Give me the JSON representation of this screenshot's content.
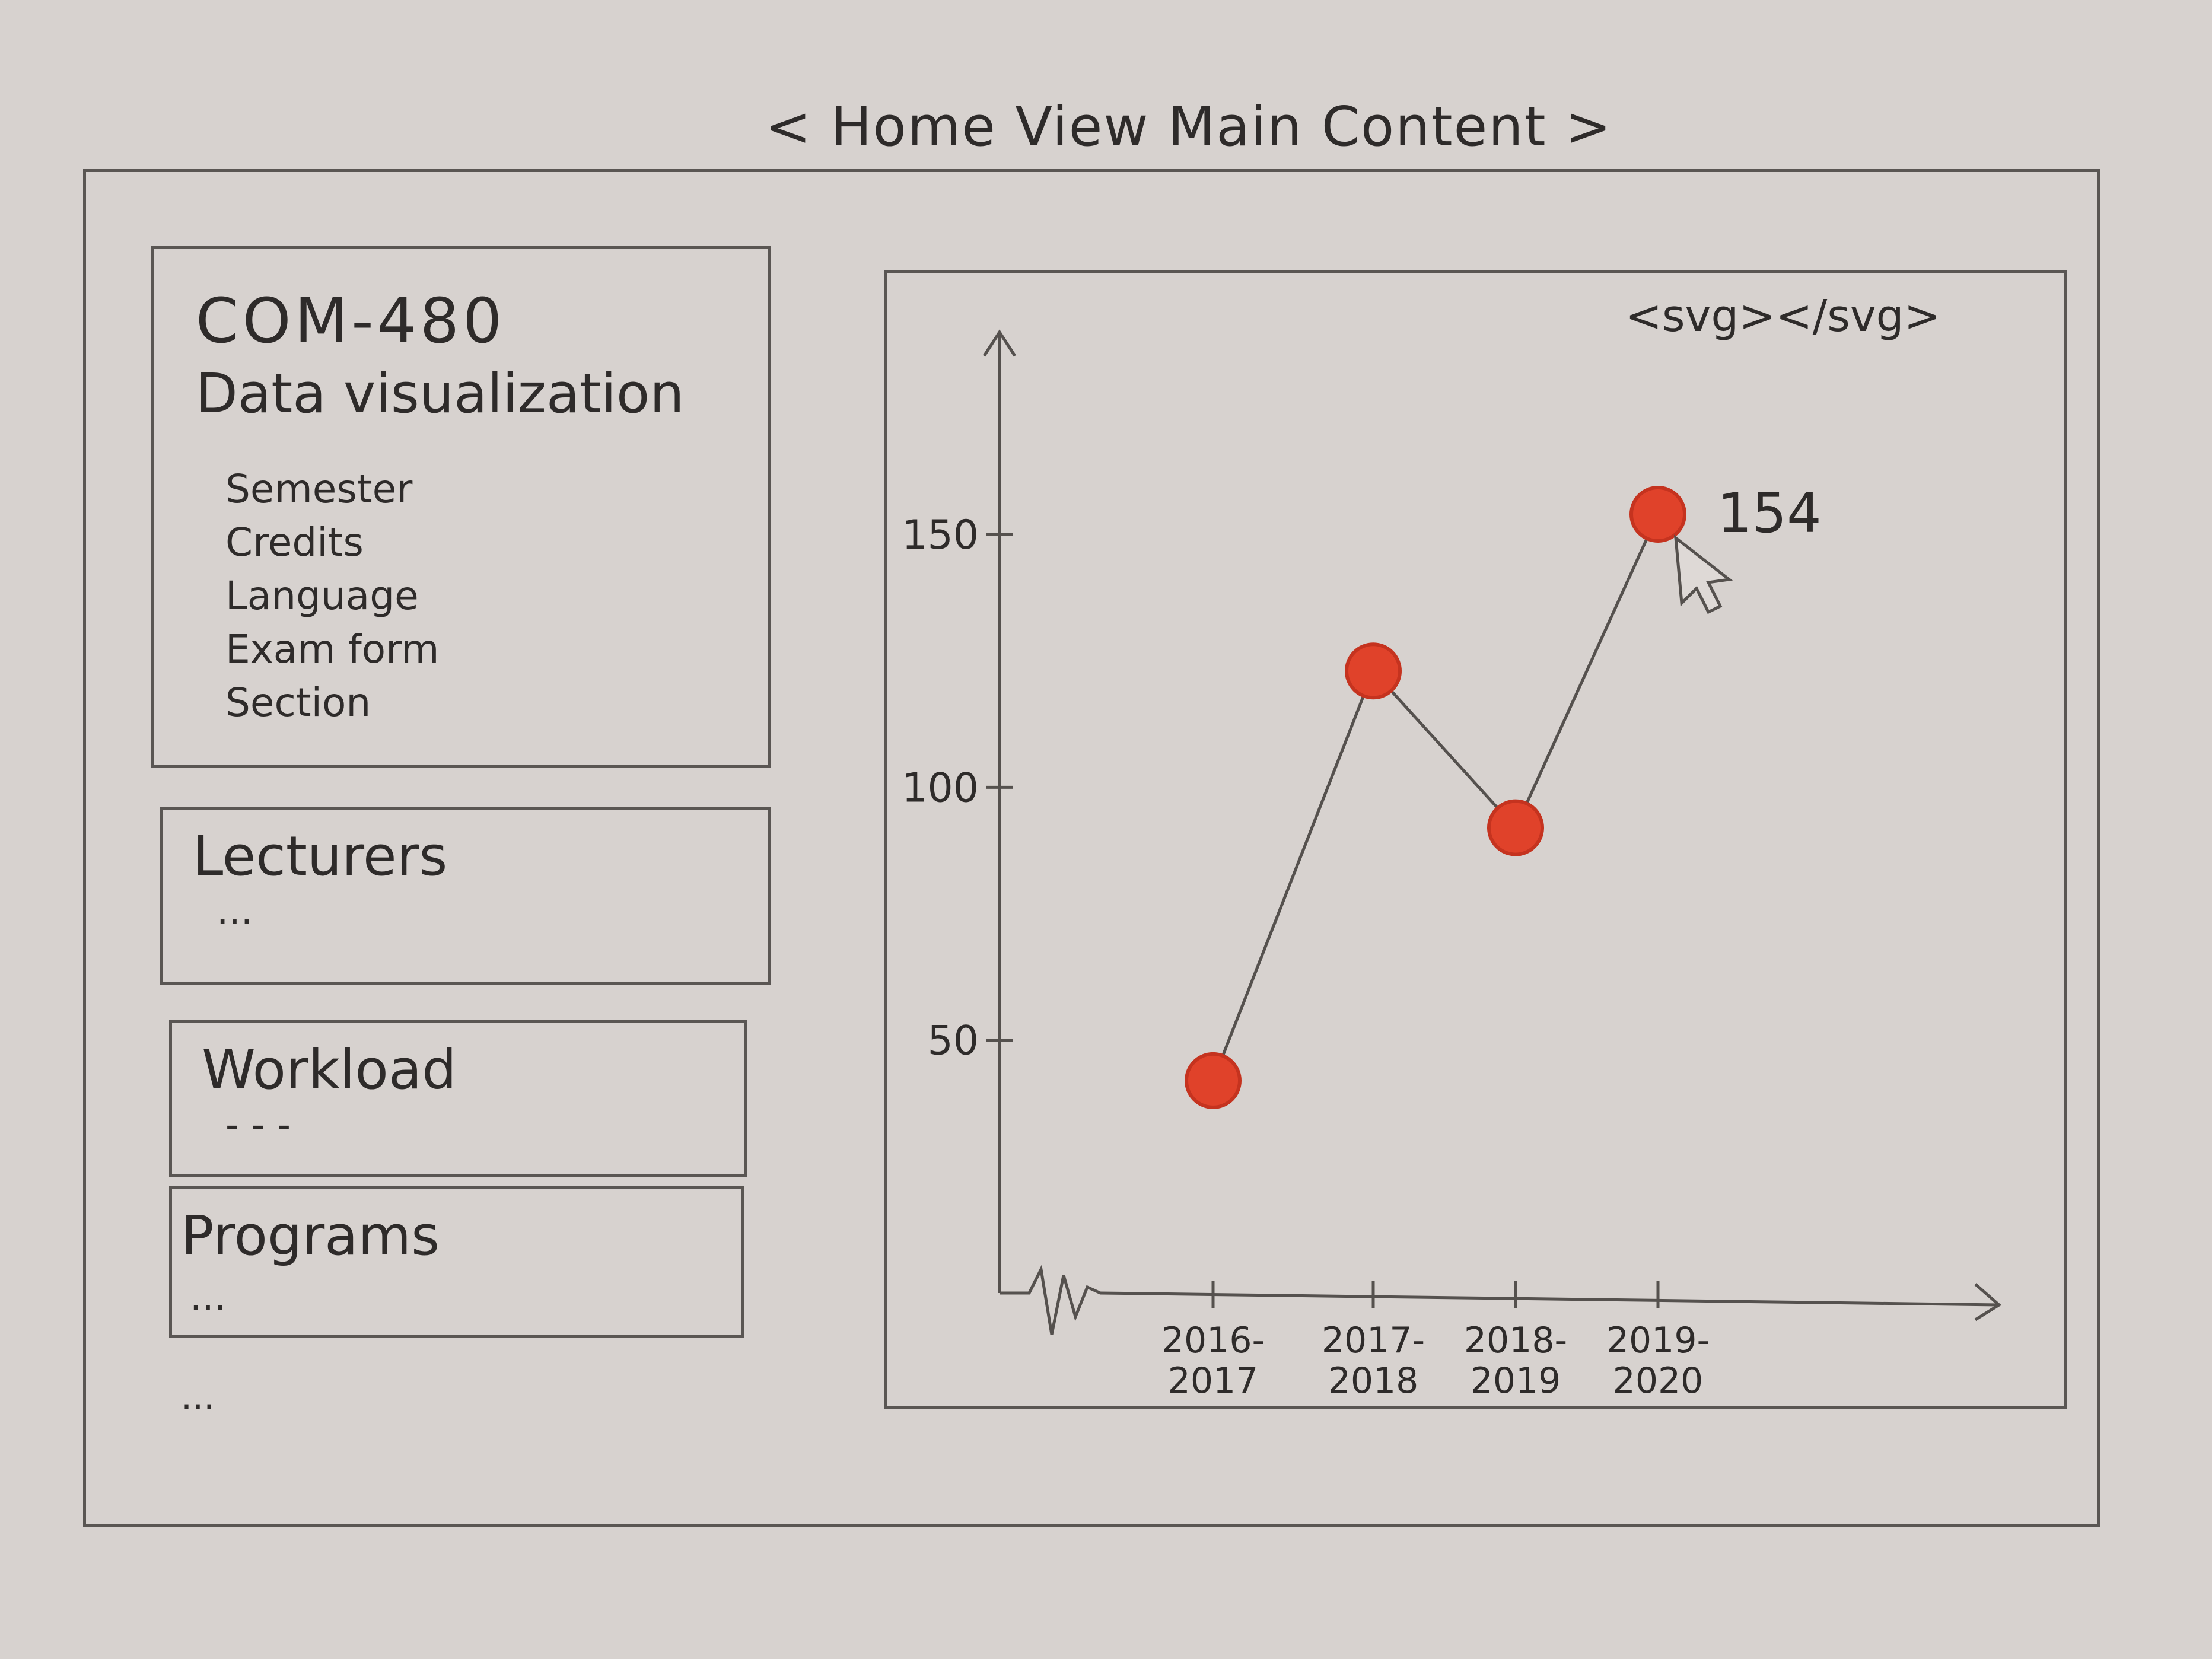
{
  "page": {
    "title": "< Home View Main Content >"
  },
  "course": {
    "code": "COM-480",
    "name": "Data visualization",
    "fields": [
      "Semester",
      "Credits",
      "Language",
      "Exam form",
      "Section"
    ]
  },
  "sections": {
    "lecturers": {
      "title": "Lecturers",
      "more": "..."
    },
    "workload": {
      "title": "Workload",
      "more": "- - -"
    },
    "programs": {
      "title": "Programs",
      "more": "..."
    },
    "more": "..."
  },
  "chart_panel": {
    "tag": "<svg></svg>"
  },
  "chart_data": {
    "type": "line",
    "categories": [
      "2016-2017",
      "2017-2018",
      "2018-2019",
      "2019-2020"
    ],
    "values": [
      42,
      123,
      92,
      154
    ],
    "yticks": [
      50,
      100,
      150
    ],
    "ylim": [
      0,
      190
    ],
    "annotation": {
      "index": 3,
      "text": "154"
    },
    "marker_color": "#e0422a",
    "line_color": "#55514e",
    "axis_break": true
  }
}
